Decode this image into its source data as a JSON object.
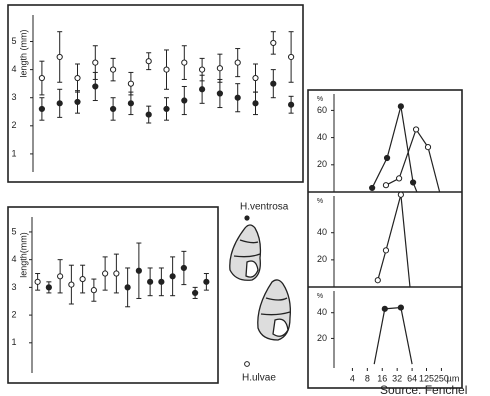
{
  "chart_data": [
    {
      "type": "errorbar",
      "ylabel": "length (mm)",
      "ylim": [
        0,
        6.3
      ],
      "yticks": [
        1,
        2,
        3,
        4,
        5
      ],
      "categories": [
        null,
        null,
        null,
        null,
        null,
        null,
        null,
        null,
        null,
        null,
        null,
        null,
        null,
        null,
        null
      ],
      "series": [
        {
          "name": "H.ulvae",
          "marker": "open",
          "color": "#222",
          "values": [
            3.7,
            4.45,
            3.7,
            4.25,
            4.0,
            3.5,
            4.3,
            4.0,
            4.25,
            4.0,
            4.05,
            4.25,
            3.7,
            4.95,
            4.45
          ],
          "errors": [
            0.6,
            0.9,
            0.5,
            0.6,
            0.4,
            0.4,
            0.3,
            0.7,
            0.6,
            0.4,
            0.5,
            0.5,
            0.5,
            0.4,
            0.9
          ]
        },
        {
          "name": "H.ventrosa",
          "marker": "filled",
          "color": "#222",
          "values": [
            2.6,
            2.8,
            2.85,
            3.4,
            2.6,
            2.8,
            2.4,
            2.6,
            2.9,
            3.3,
            3.15,
            3.0,
            2.8,
            3.5,
            2.75
          ],
          "errors": [
            0.4,
            0.5,
            0.4,
            0.5,
            0.4,
            0.4,
            0.3,
            0.4,
            0.5,
            0.5,
            0.5,
            0.5,
            0.4,
            0.5,
            0.3
          ]
        }
      ]
    },
    {
      "type": "errorbar",
      "ylabel": "length(mm)",
      "ylim": [
        -0.45,
        5.9
      ],
      "yticks": [
        1,
        2,
        3,
        4,
        5
      ],
      "categories": [
        null,
        null,
        null,
        null,
        null,
        null,
        null,
        null,
        null,
        null,
        null,
        null,
        null,
        null,
        null,
        null
      ],
      "series": [
        {
          "marker": "open",
          "color": "#222",
          "values": [
            3.2,
            null,
            3.4,
            3.1,
            3.3,
            2.9,
            3.5,
            3.5,
            null,
            null,
            null,
            null,
            null,
            null,
            null,
            null
          ],
          "errors": [
            0.3,
            null,
            0.6,
            0.7,
            0.5,
            0.4,
            0.6,
            0.7,
            null,
            null,
            null,
            null,
            null,
            null,
            null,
            null
          ]
        },
        {
          "marker": "filled",
          "color": "#222",
          "values": [
            null,
            3.0,
            null,
            null,
            null,
            null,
            null,
            null,
            3.0,
            3.6,
            3.2,
            3.2,
            3.4,
            3.7,
            2.8,
            3.2
          ],
          "errors": [
            null,
            0.2,
            null,
            null,
            null,
            null,
            null,
            null,
            0.7,
            1.0,
            0.5,
            0.5,
            0.7,
            0.6,
            0.2,
            0.3
          ]
        }
      ]
    },
    {
      "type": "line",
      "ylabel": "%",
      "xscale": "log",
      "xlim": [
        1.7,
        650
      ],
      "ylim": [
        0,
        75
      ],
      "yticks": [
        20,
        40,
        60
      ],
      "series": [
        {
          "marker": "filled",
          "color": "#222",
          "x": [
            10,
            20,
            38,
            67,
            80
          ],
          "values": [
            3,
            25,
            63,
            7,
            0
          ]
        },
        {
          "marker": "open",
          "color": "#222",
          "x": [
            19,
            35,
            77,
            134,
            230
          ],
          "values": [
            5,
            10,
            46,
            33,
            0
          ]
        }
      ]
    },
    {
      "type": "line",
      "ylabel": "%",
      "xscale": "log",
      "xlim": [
        1.7,
        650
      ],
      "ylim": [
        0,
        70
      ],
      "yticks": [
        20,
        40
      ],
      "series": [
        {
          "marker": "open",
          "color": "#222",
          "x": [
            13,
            19,
            38,
            58
          ],
          "values": [
            5,
            27,
            68,
            0
          ]
        }
      ]
    },
    {
      "type": "line",
      "ylabel": "%",
      "xlabel": "µm",
      "xscale": "log",
      "xlim": [
        1.7,
        650
      ],
      "ylim": [
        -3,
        60
      ],
      "yticks": [
        20,
        40
      ],
      "xticks": [
        4,
        8,
        16,
        32,
        64,
        125,
        250
      ],
      "series": [
        {
          "marker": "filled",
          "color": "#222",
          "x": [
            11,
            18,
            38,
            64
          ],
          "values": [
            0,
            43,
            44,
            0
          ]
        }
      ]
    }
  ],
  "source": "Source: Fenchel"
}
